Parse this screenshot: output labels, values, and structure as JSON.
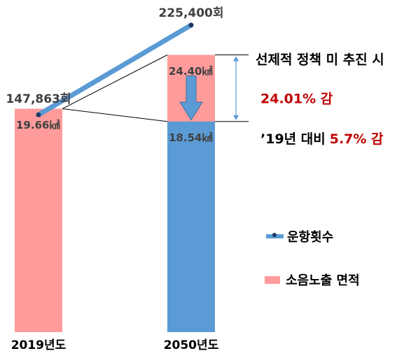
{
  "chart_data": {
    "type": "bar",
    "categories": [
      "2019년도",
      "2050년도"
    ],
    "ylim": [
      0,
      28
    ],
    "y2lim": [
      -40000,
      235000
    ],
    "series": [
      {
        "name": "소음노출 면적",
        "color": "#ff9b9b",
        "values": [
          19.66,
          24.4
        ],
        "value_labels": [
          "19.66㎢",
          "24.40㎢"
        ]
      },
      {
        "name": "운항횟수",
        "color": "#5b9bd5",
        "axis": "y2",
        "type": "line",
        "values": [
          147863,
          225400
        ],
        "value_labels": [
          "147,863회",
          "225,400회"
        ]
      }
    ],
    "overlay": {
      "color": "#5b9bd5",
      "values": [
        null,
        18.54
      ],
      "value_labels": [
        null,
        "18.54㎢"
      ]
    },
    "annotations": [
      "선제적 정책 미 추진 시",
      "24.01% 감",
      "’19년 대비",
      "5.7% 감"
    ]
  }
}
